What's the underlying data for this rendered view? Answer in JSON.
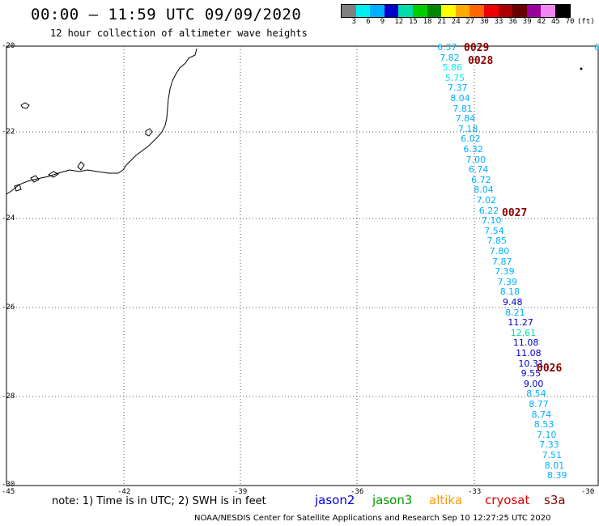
{
  "header": {
    "title": "00:00 – 11:59 UTC 09/09/2020",
    "subtitle": "12 hour collection of altimeter wave heights"
  },
  "legend": {
    "unit": "(ft)",
    "colors": [
      "#808080",
      "#00eeee",
      "#00b0ff",
      "#0000cc",
      "#00ddaa",
      "#00cc00",
      "#008800",
      "#ffff00",
      "#ffaa00",
      "#ff6600",
      "#ee0000",
      "#aa0000",
      "#660000",
      "#990099",
      "#ee88ee",
      "#000000"
    ],
    "labels": [
      "3",
      "6",
      "9",
      "12",
      "15",
      "18",
      "21",
      "24",
      "27",
      "30",
      "33",
      "36",
      "39",
      "42",
      "45",
      "70"
    ]
  },
  "axes": {
    "lat_labels": [
      "-20",
      "-22",
      "-24",
      "-26",
      "-28",
      "-30"
    ],
    "lon_labels": [
      "-45",
      "-42",
      "-39",
      "-36",
      "-33",
      "-30"
    ]
  },
  "wave_values": [
    "6.37",
    "7.82",
    "5.86",
    "5.75",
    "7.37",
    "8.04",
    "7.81",
    "7.84",
    "7.18",
    "6.02",
    "6.32",
    "7.00",
    "6.74",
    "6.72",
    "8.04",
    "7.02",
    "6.22",
    "7.10",
    "7.54",
    "7.85",
    "7.80",
    "7.87",
    "7.39",
    "7.39",
    "8.18",
    "9.48",
    "8.21",
    "11.27",
    "12.61",
    "11.08",
    "11.08",
    "10.31",
    "9.55",
    "9.00",
    "8.54",
    "8.77",
    "8.74",
    "8.53",
    "7.10",
    "7.33",
    "7.51",
    "8.01",
    "8.39"
  ],
  "right_edge_value": "6",
  "pass_times": [
    "0029",
    "0028",
    "0027",
    "0026"
  ],
  "note": "note: 1) Time is in UTC; 2) SWH is in feet",
  "satellites": {
    "jason2": {
      "label": "jason2",
      "color": "#0000dd"
    },
    "jason3": {
      "label": "jason3",
      "color": "#009900"
    },
    "altika": {
      "label": "altika",
      "color": "#ff9900"
    },
    "cryosat": {
      "label": "cryosat",
      "color": "#dd0000"
    },
    "s3a": {
      "label": "s3a",
      "color": "#880000"
    }
  },
  "credit": "NOAA/NESDIS Center for Satellite Applications and Research   Sep 10 12:27:25 UTC 2020"
}
